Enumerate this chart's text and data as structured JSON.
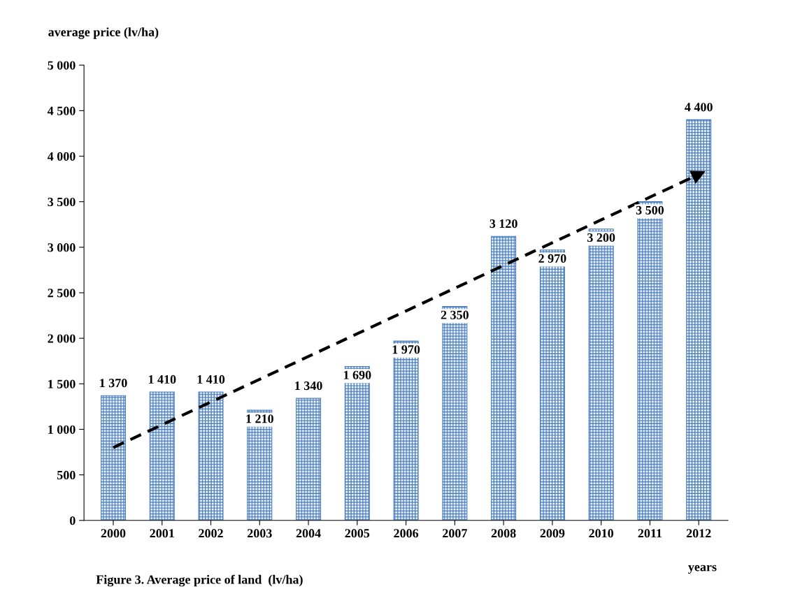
{
  "chart_data": {
    "type": "bar",
    "title": "Figure 3. Average price of land  (lv/ha)",
    "ylabel": "average price (lv/ha)",
    "xlabel": "years",
    "categories": [
      "2000",
      "2001",
      "2002",
      "2003",
      "2004",
      "2005",
      "2006",
      "2007",
      "2008",
      "2009",
      "2010",
      "2011",
      "2012"
    ],
    "series": [
      {
        "color": "#4a7ebb",
        "values": [
          1370,
          1410,
          1410,
          1210,
          1340,
          1690,
          1970,
          2350,
          3120,
          2970,
          3200,
          3500,
          4400
        ],
        "value_labels": [
          "1 370",
          "1 410",
          "1 410",
          "1 210",
          "1 340",
          "1 690",
          "1 970",
          "2 350",
          "3 120",
          "2 970",
          "3 200",
          "3 500",
          "4 400"
        ]
      },
      {
        "type": "line",
        "color": "#000000",
        "line_style": "dashed",
        "values": [
          800,
          1050,
          1300,
          1550,
          1800,
          2050,
          2300,
          2550,
          2800,
          3050,
          3300,
          3550,
          3800
        ]
      }
    ],
    "ylim": [
      0,
      5000
    ],
    "yticks": [
      0,
      500,
      {
        "value": 1000,
        "label": "1 000"
      },
      {
        "value": 1500,
        "label": "1 500"
      },
      {
        "value": 2000,
        "label": "2 000"
      },
      {
        "value": 2500,
        "label": "2 500"
      },
      {
        "value": 3000,
        "label": "3 000"
      },
      {
        "value": 3500,
        "label": "3 500"
      },
      {
        "value": 4000,
        "label": "4 000"
      },
      {
        "value": 4500,
        "label": "4 500"
      },
      {
        "value": 5000,
        "label": "5 000"
      }
    ],
    "grid": false,
    "legend": false
  }
}
